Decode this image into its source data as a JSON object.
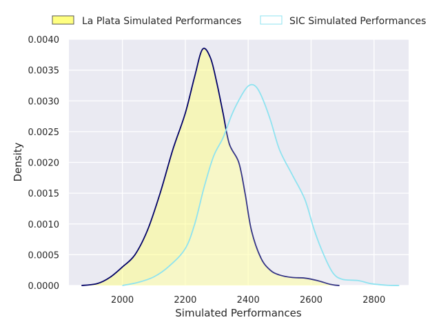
{
  "chart_data": {
    "type": "area",
    "title": "",
    "xlabel": "Simulated Performances",
    "ylabel": "Density",
    "xlim": [
      1830,
      2910
    ],
    "ylim": [
      0,
      0.004
    ],
    "x_ticks": [
      2000,
      2200,
      2400,
      2600,
      2800
    ],
    "x_tick_labels": [
      "2000",
      "2200",
      "2400",
      "2600",
      "2800"
    ],
    "y_ticks": [
      0,
      0.0005,
      0.001,
      0.0015,
      0.002,
      0.0025,
      0.003,
      0.0035,
      0.004
    ],
    "y_tick_labels": [
      "0.0000",
      "0.0005",
      "0.0010",
      "0.0015",
      "0.0020",
      "0.0025",
      "0.0030",
      "0.0035",
      "0.0040"
    ],
    "grid": true,
    "legend_position": "top",
    "plot_background": "#eaeaf2",
    "series": [
      {
        "name": "La Plata Simulated Performances",
        "fill": "#ffff80",
        "fill_opacity": 0.5,
        "line": "#000066",
        "legend_edge": "#555555",
        "points": [
          [
            1870,
            0
          ],
          [
            1920,
            3e-05
          ],
          [
            1960,
            0.00013
          ],
          [
            2000,
            0.0003
          ],
          [
            2040,
            0.0005
          ],
          [
            2080,
            0.0009
          ],
          [
            2120,
            0.0015
          ],
          [
            2160,
            0.0022
          ],
          [
            2200,
            0.0028
          ],
          [
            2230,
            0.0034
          ],
          [
            2255,
            0.00384
          ],
          [
            2280,
            0.0037
          ],
          [
            2300,
            0.0033
          ],
          [
            2320,
            0.0028
          ],
          [
            2340,
            0.0023
          ],
          [
            2370,
            0.002
          ],
          [
            2390,
            0.0015
          ],
          [
            2410,
            0.0009
          ],
          [
            2440,
            0.00045
          ],
          [
            2470,
            0.00025
          ],
          [
            2500,
            0.00017
          ],
          [
            2540,
            0.00013
          ],
          [
            2580,
            0.00012
          ],
          [
            2620,
            8e-05
          ],
          [
            2660,
            2e-05
          ],
          [
            2690,
            0
          ]
        ]
      },
      {
        "name": "SIC Simulated Performances",
        "fill": "#ffffff",
        "fill_opacity": 0.2,
        "line": "#8ee3f0",
        "legend_edge": "#8ee3f0",
        "points": [
          [
            2000,
            0
          ],
          [
            2050,
            5e-05
          ],
          [
            2100,
            0.00014
          ],
          [
            2150,
            0.00032
          ],
          [
            2200,
            0.0006
          ],
          [
            2230,
            0.001
          ],
          [
            2260,
            0.0016
          ],
          [
            2290,
            0.0021
          ],
          [
            2320,
            0.0024
          ],
          [
            2350,
            0.0028
          ],
          [
            2380,
            0.0031
          ],
          [
            2400,
            0.00324
          ],
          [
            2420,
            0.00325
          ],
          [
            2440,
            0.0031
          ],
          [
            2470,
            0.0027
          ],
          [
            2500,
            0.0022
          ],
          [
            2540,
            0.0018
          ],
          [
            2580,
            0.0014
          ],
          [
            2610,
            0.0009
          ],
          [
            2640,
            0.0005
          ],
          [
            2670,
            0.0002
          ],
          [
            2700,
            0.0001
          ],
          [
            2750,
            8e-05
          ],
          [
            2790,
            3e-05
          ],
          [
            2840,
            5e-06
          ],
          [
            2880,
            0
          ]
        ]
      }
    ]
  }
}
